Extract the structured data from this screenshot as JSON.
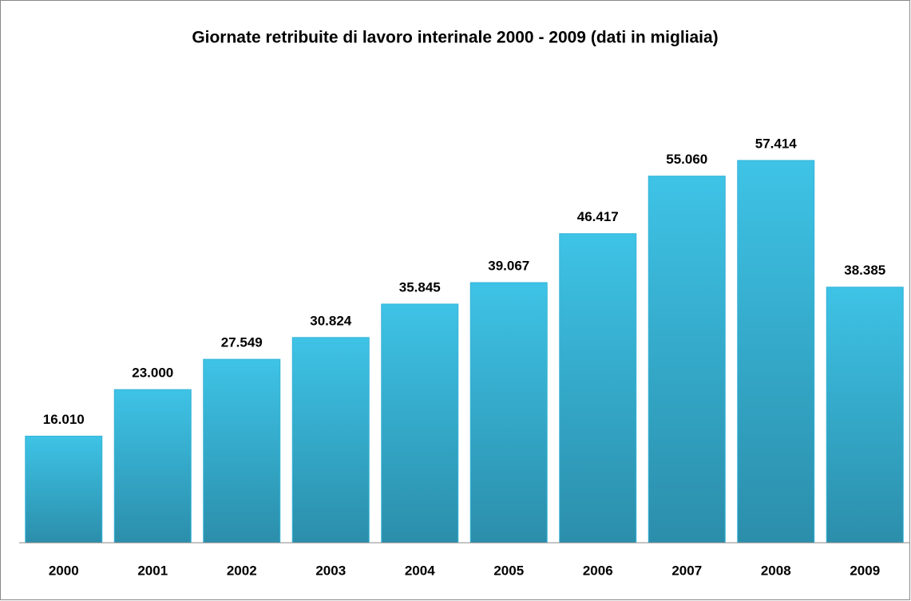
{
  "chart_data": {
    "type": "bar",
    "title": "Giornate retribuite di lavoro interinale 2000 - 2009 (dati in migliaia)",
    "categories": [
      "2000",
      "2001",
      "2002",
      "2003",
      "2004",
      "2005",
      "2006",
      "2007",
      "2008",
      "2009"
    ],
    "values": [
      16010,
      23000,
      27549,
      30824,
      35845,
      39067,
      46417,
      55060,
      57414,
      38385
    ],
    "value_labels": [
      "16.010",
      "23.000",
      "27.549",
      "30.824",
      "35.845",
      "39.067",
      "46.417",
      "55.060",
      "57.414",
      "38.385"
    ],
    "color": "#35b4d8",
    "ylim": [
      0,
      70000
    ]
  }
}
